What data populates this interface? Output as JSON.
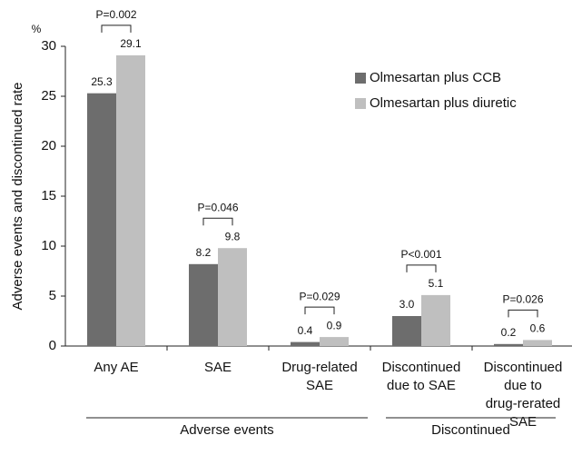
{
  "chart_data": {
    "type": "bar",
    "y_label": "Adverse events and discontinued rate",
    "y_unit": "%",
    "categories": [
      [
        "Any AE"
      ],
      [
        "SAE"
      ],
      [
        "Drug-related",
        "SAE"
      ],
      [
        "Discontinued",
        "due to SAE"
      ],
      [
        "Discontinued",
        "due to",
        "drug-rerated",
        "SAE"
      ]
    ],
    "series": [
      {
        "name": "Olmesartan plus CCB",
        "color": "#6d6d6d",
        "values": [
          25.3,
          8.2,
          0.4,
          3.0,
          0.2
        ],
        "value_labels": [
          "25.3",
          "8.2",
          "0.4",
          "3.0",
          "0.2"
        ]
      },
      {
        "name": "Olmesartan plus diuretic",
        "color": "#bfbfbf",
        "values": [
          29.1,
          9.8,
          0.9,
          5.1,
          0.6
        ],
        "value_labels": [
          "29.1",
          "9.8",
          "0.9",
          "5.1",
          "0.6"
        ]
      }
    ],
    "annotations": [
      "P=0.002",
      "P=0.046",
      "P=0.029",
      "P<0.001",
      "P=0.026"
    ],
    "groups": [
      "Adverse events",
      "Discontinued"
    ],
    "ylim": [
      0,
      30
    ],
    "yticks": [
      0,
      5,
      10,
      15,
      20,
      25,
      30
    ],
    "legend": "upper right"
  }
}
